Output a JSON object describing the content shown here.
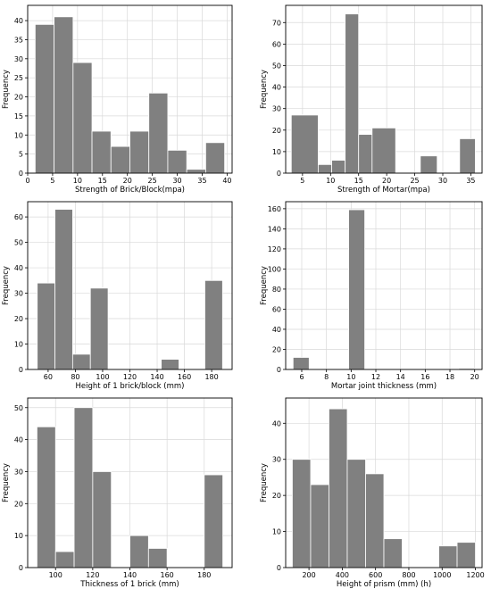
{
  "colors": {
    "bar": "#808080",
    "grid": "#d9d9d9",
    "frame": "#000000"
  },
  "chart_data": [
    {
      "type": "bar",
      "subtype": "histogram",
      "xlabel": "Strength of Brick/Block(mpa)",
      "ylabel": "Frequency",
      "bins": [
        [
          1.5,
          5.3
        ],
        [
          5.3,
          9.1
        ],
        [
          9.1,
          12.9
        ],
        [
          12.9,
          16.7
        ],
        [
          16.7,
          20.5
        ],
        [
          20.5,
          24.3
        ],
        [
          24.3,
          28.1
        ],
        [
          28.1,
          31.9
        ],
        [
          31.9,
          35.7
        ],
        [
          35.7,
          39.5
        ]
      ],
      "values": [
        39,
        41,
        29,
        11,
        7,
        11,
        21,
        6,
        1,
        8
      ],
      "xlim": [
        0,
        41
      ],
      "ylim": [
        0,
        44
      ],
      "xticks": [
        0,
        5,
        10,
        15,
        20,
        25,
        30,
        35,
        40
      ],
      "yticks": [
        0,
        5,
        10,
        15,
        20,
        25,
        30,
        35,
        40
      ],
      "grid": true
    },
    {
      "type": "bar",
      "subtype": "histogram",
      "xlabel": "Strength of Mortar(mpa)",
      "ylabel": "Frequency",
      "bins": [
        [
          3,
          7.8
        ],
        [
          7.8,
          10.2
        ],
        [
          10.2,
          12.6
        ],
        [
          12.6,
          15
        ],
        [
          15,
          17.4
        ],
        [
          17.4,
          21.6
        ],
        [
          26,
          29
        ],
        [
          33,
          35.8
        ]
      ],
      "values": [
        27,
        4,
        6,
        74,
        18,
        21,
        8,
        16
      ],
      "xlim": [
        2,
        37
      ],
      "ylim": [
        0,
        78
      ],
      "xticks": [
        5,
        10,
        15,
        20,
        25,
        30,
        35
      ],
      "yticks": [
        0,
        10,
        20,
        30,
        40,
        50,
        60,
        70
      ],
      "grid": true
    },
    {
      "type": "bar",
      "subtype": "histogram",
      "xlabel": "Height of 1 brick/block (mm)",
      "ylabel": "Frequency",
      "bins": [
        [
          52,
          65
        ],
        [
          65,
          78
        ],
        [
          78,
          91
        ],
        [
          91,
          104
        ],
        [
          143,
          156
        ],
        [
          175,
          188
        ]
      ],
      "values": [
        34,
        63,
        6,
        32,
        4,
        35
      ],
      "xlim": [
        45,
        195
      ],
      "ylim": [
        0,
        66
      ],
      "xticks": [
        60,
        80,
        100,
        120,
        140,
        160,
        180
      ],
      "yticks": [
        0,
        10,
        20,
        30,
        40,
        50,
        60
      ],
      "grid": true
    },
    {
      "type": "bar",
      "subtype": "histogram",
      "xlabel": "Mortar joint thickness (mm)",
      "ylabel": "Frequency",
      "bins": [
        [
          5.3,
          6.6
        ],
        [
          9.8,
          11.1
        ],
        [
          18.7,
          20
        ]
      ],
      "values": [
        12,
        159,
        1
      ],
      "xlim": [
        4.7,
        20.6
      ],
      "ylim": [
        0,
        167
      ],
      "xticks": [
        6,
        8,
        10,
        12,
        14,
        16,
        18,
        20
      ],
      "yticks": [
        0,
        20,
        40,
        60,
        80,
        100,
        120,
        140,
        160
      ],
      "grid": true
    },
    {
      "type": "bar",
      "subtype": "histogram",
      "xlabel": "Thickness of 1 brick (mm)",
      "ylabel": "Frequency",
      "bins": [
        [
          90,
          100
        ],
        [
          100,
          110
        ],
        [
          110,
          120
        ],
        [
          120,
          130
        ],
        [
          140,
          150
        ],
        [
          150,
          160
        ],
        [
          180,
          190
        ]
      ],
      "values": [
        44,
        5,
        50,
        30,
        10,
        6,
        29
      ],
      "xlim": [
        85,
        195
      ],
      "ylim": [
        0,
        53
      ],
      "xticks": [
        100,
        120,
        140,
        160,
        180
      ],
      "yticks": [
        0,
        10,
        20,
        30,
        40,
        50
      ],
      "grid": true
    },
    {
      "type": "bar",
      "subtype": "histogram",
      "xlabel": "Height of prism (mm) (h)",
      "ylabel": "Frequency",
      "bins": [
        [
          100,
          210
        ],
        [
          210,
          320
        ],
        [
          320,
          430
        ],
        [
          430,
          540
        ],
        [
          540,
          650
        ],
        [
          650,
          760
        ],
        [
          980,
          1090
        ],
        [
          1090,
          1200
        ]
      ],
      "values": [
        30,
        23,
        44,
        30,
        26,
        8,
        6,
        7
      ],
      "xlim": [
        60,
        1240
      ],
      "ylim": [
        0,
        47
      ],
      "xticks": [
        200,
        400,
        600,
        800,
        1000,
        1200
      ],
      "yticks": [
        0,
        10,
        20,
        30,
        40
      ],
      "grid": true
    }
  ]
}
